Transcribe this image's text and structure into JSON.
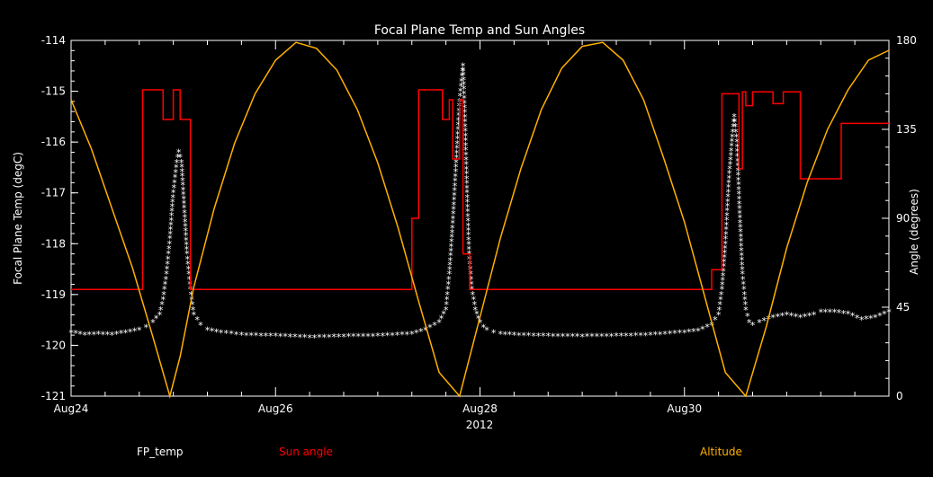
{
  "chart_data": {
    "type": "line",
    "title": "Focal Plane Temp and Sun Angles",
    "xlabel": "2012",
    "ylabel_left": "Focal Plane Temp (degC)",
    "ylabel_right": "Angle (degrees)",
    "x_ticks": [
      "Aug24",
      "Aug26",
      "Aug28",
      "Aug30"
    ],
    "ylim_left": [
      -121,
      -114
    ],
    "ylim_right": [
      0,
      180
    ],
    "y_ticks_left": [
      "-114",
      "-115",
      "-116",
      "-117",
      "-118",
      "-119",
      "-120",
      "-121"
    ],
    "y_ticks_right": [
      "180",
      "135",
      "90",
      "45",
      "0"
    ],
    "legend_placement": "bottom",
    "series": [
      {
        "name": "FP_temp",
        "axis": "left",
        "color": "#ffffff",
        "marker": "asterisk",
        "x": [
          0.0,
          0.2,
          0.4,
          0.6,
          0.8,
          1.0,
          1.1,
          1.2,
          1.3,
          1.35,
          1.4,
          1.45,
          1.5,
          1.55,
          1.58,
          1.62,
          1.66,
          1.7,
          1.75,
          1.8,
          1.9,
          2.0,
          2.2,
          2.5,
          3.0,
          3.5,
          4.0,
          4.5,
          5.0,
          5.2,
          5.4,
          5.5,
          5.55,
          5.6,
          5.65,
          5.7,
          5.75,
          5.78,
          5.81,
          5.84,
          5.88,
          5.93,
          6.0,
          6.05,
          6.1,
          6.2,
          6.3,
          6.5,
          7.0,
          7.5,
          8.0,
          8.5,
          9.0,
          9.2,
          9.4,
          9.5,
          9.55,
          9.6,
          9.65,
          9.7,
          9.73,
          9.77,
          9.81,
          9.85,
          9.9,
          9.95,
          10.0,
          10.1,
          10.3,
          10.5,
          10.7,
          10.9,
          11.0,
          11.2,
          11.4,
          11.6,
          11.8,
          12.0
        ],
        "y": [
          -119.75,
          -119.8,
          -119.78,
          -119.8,
          -119.75,
          -119.7,
          -119.65,
          -119.55,
          -119.4,
          -119.1,
          -118.6,
          -117.9,
          -117.0,
          -116.4,
          -116.2,
          -116.4,
          -117.3,
          -118.2,
          -118.9,
          -119.4,
          -119.6,
          -119.7,
          -119.75,
          -119.8,
          -119.82,
          -119.85,
          -119.83,
          -119.82,
          -119.78,
          -119.7,
          -119.55,
          -119.3,
          -118.6,
          -117.6,
          -116.4,
          -115.2,
          -114.5,
          -115.6,
          -117.0,
          -118.2,
          -118.9,
          -119.3,
          -119.55,
          -119.65,
          -119.7,
          -119.75,
          -119.78,
          -119.8,
          -119.82,
          -119.83,
          -119.82,
          -119.8,
          -119.75,
          -119.72,
          -119.6,
          -119.4,
          -118.9,
          -118.0,
          -116.8,
          -115.9,
          -115.5,
          -116.0,
          -117.4,
          -118.6,
          -119.3,
          -119.55,
          -119.6,
          -119.55,
          -119.45,
          -119.4,
          -119.45,
          -119.4,
          -119.35,
          -119.35,
          -119.38,
          -119.5,
          -119.45,
          -119.35
        ]
      },
      {
        "name": "Sun angle",
        "axis": "right",
        "color": "#ff0000",
        "step": true,
        "x": [
          0.0,
          1.05,
          1.05,
          1.35,
          1.35,
          1.5,
          1.5,
          1.6,
          1.6,
          1.75,
          1.75,
          2.0,
          2.0,
          5.0,
          5.0,
          5.1,
          5.1,
          5.2,
          5.2,
          5.45,
          5.45,
          5.55,
          5.55,
          5.6,
          5.6,
          5.7,
          5.7,
          5.75,
          5.75,
          5.85,
          5.85,
          9.4,
          9.4,
          9.55,
          9.55,
          9.8,
          9.8,
          9.85,
          9.85,
          9.9,
          9.9,
          10.0,
          10.0,
          10.3,
          10.3,
          10.45,
          10.45,
          10.7,
          10.7,
          11.3,
          11.3,
          12.0
        ],
        "y": [
          54,
          54,
          155,
          155,
          140,
          140,
          155,
          155,
          140,
          140,
          54,
          54,
          54,
          54,
          90,
          90,
          155,
          155,
          155,
          155,
          140,
          140,
          150,
          150,
          120,
          120,
          150,
          150,
          72,
          72,
          54,
          54,
          64,
          64,
          153,
          153,
          115,
          115,
          154,
          154,
          147,
          147,
          154,
          154,
          148,
          148,
          154,
          154,
          110,
          110,
          138,
          138
        ]
      },
      {
        "name": "Altitude",
        "axis": "right",
        "color": "#ffb000",
        "x": [
          0.0,
          0.3,
          0.6,
          0.9,
          1.2,
          1.45,
          1.6,
          1.8,
          2.1,
          2.4,
          2.7,
          3.0,
          3.3,
          3.6,
          3.9,
          4.2,
          4.5,
          4.8,
          5.1,
          5.4,
          5.7,
          6.0,
          6.3,
          6.6,
          6.9,
          7.2,
          7.5,
          7.8,
          8.1,
          8.4,
          8.7,
          9.0,
          9.3,
          9.6,
          9.9,
          10.2,
          10.5,
          10.8,
          11.1,
          11.4,
          11.7,
          12.0
        ],
        "y": [
          150,
          125,
          95,
          65,
          30,
          0,
          20,
          55,
          95,
          128,
          153,
          170,
          179,
          176,
          165,
          145,
          118,
          85,
          48,
          12,
          0,
          40,
          80,
          115,
          145,
          166,
          177,
          179,
          170,
          150,
          120,
          88,
          50,
          12,
          0,
          35,
          75,
          108,
          135,
          155,
          170,
          175
        ]
      }
    ],
    "xlim": [
      0,
      12
    ]
  }
}
